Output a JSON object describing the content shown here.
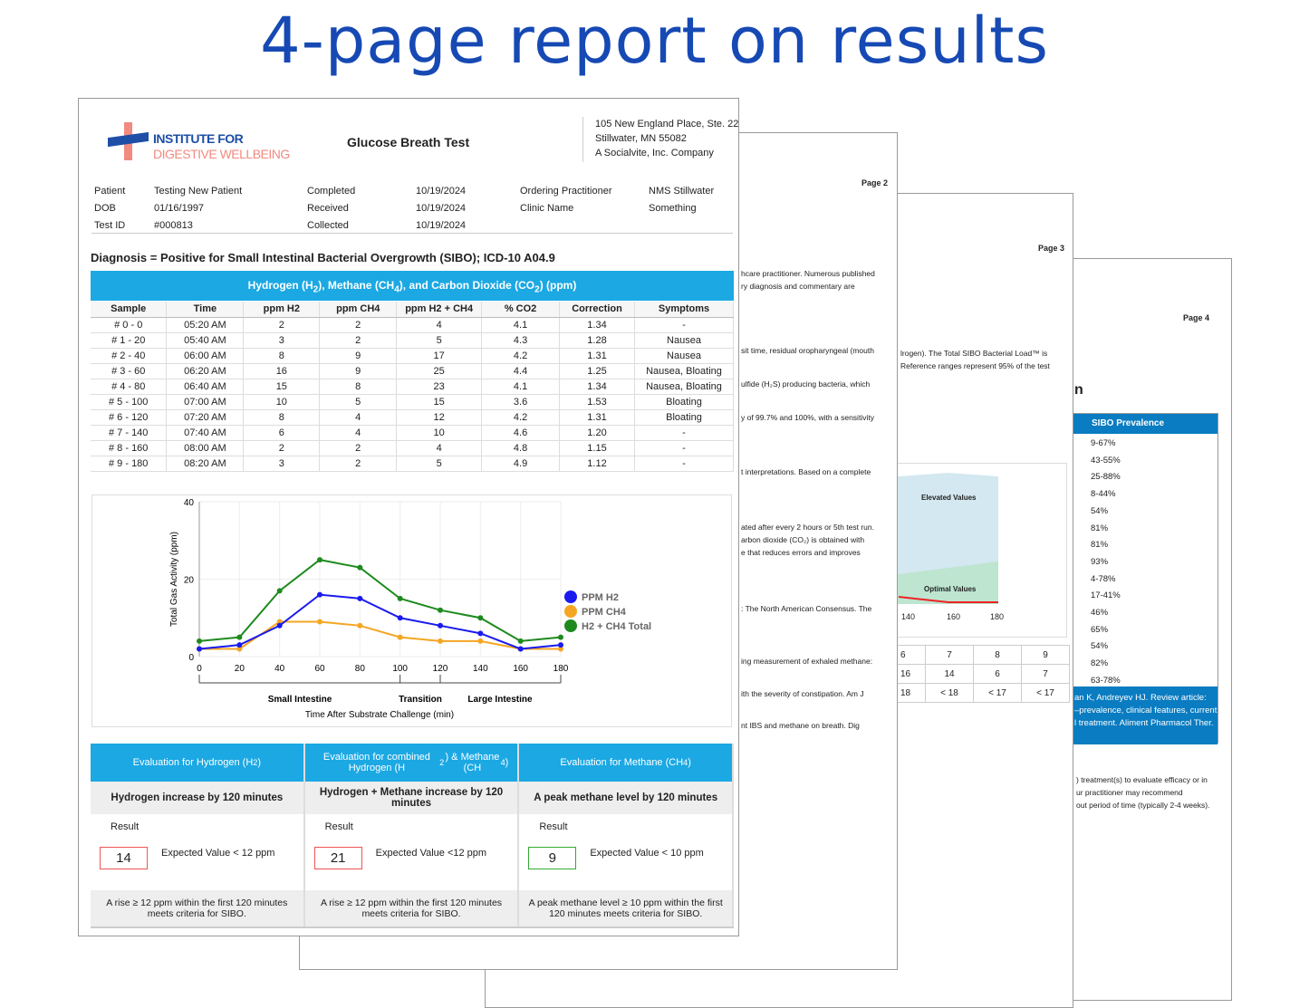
{
  "heading": "4-page report on results",
  "page1": {
    "logo": {
      "line1": "INSTITUTE FOR",
      "line2": "DIGESTIVE WELLBEING"
    },
    "title": "Glucose Breath Test",
    "address": [
      "105 New England Place, Ste. 220",
      "Stillwater, MN 55082",
      "A Socialvite, Inc. Company"
    ],
    "info": [
      {
        "l1": "Patient",
        "v1": "Testing New Patient",
        "l2": "Completed",
        "v2": "10/19/2024",
        "l3": "Ordering Practitioner",
        "v3": "NMS Stillwater"
      },
      {
        "l1": "DOB",
        "v1": "01/16/1997",
        "l2": "Received",
        "v2": "10/19/2024",
        "l3": "Clinic Name",
        "v3": "Something"
      },
      {
        "l1": "Test ID",
        "v1": "#000813",
        "l2": "Collected",
        "v2": "10/19/2024",
        "l3": "",
        "v3": ""
      }
    ],
    "diagnosis": "Diagnosis = Positive for Small Intestinal Bacterial Overgrowth (SIBO); ICD-10 A04.9",
    "table_title": "Hydrogen (H2), Methane (CH4), and Carbon Dioxide (CO2) (ppm)",
    "columns": [
      "Sample",
      "Time",
      "ppm H2",
      "ppm CH4",
      "ppm H2 + CH4",
      "% CO2",
      "Correction",
      "Symptoms"
    ],
    "rows": [
      [
        "# 0 - 0",
        "05:20 AM",
        "2",
        "2",
        "4",
        "4.1",
        "1.34",
        "-"
      ],
      [
        "# 1 - 20",
        "05:40 AM",
        "3",
        "2",
        "5",
        "4.3",
        "1.28",
        "Nausea"
      ],
      [
        "# 2 - 40",
        "06:00 AM",
        "8",
        "9",
        "17",
        "4.2",
        "1.31",
        "Nausea"
      ],
      [
        "# 3 - 60",
        "06:20 AM",
        "16",
        "9",
        "25",
        "4.4",
        "1.25",
        "Nausea, Bloating"
      ],
      [
        "# 4 - 80",
        "06:40 AM",
        "15",
        "8",
        "23",
        "4.1",
        "1.34",
        "Nausea, Bloating"
      ],
      [
        "# 5 - 100",
        "07:00 AM",
        "10",
        "5",
        "15",
        "3.6",
        "1.53",
        "Bloating"
      ],
      [
        "# 6 - 120",
        "07:20 AM",
        "8",
        "4",
        "12",
        "4.2",
        "1.31",
        "Bloating"
      ],
      [
        "# 7 - 140",
        "07:40 AM",
        "6",
        "4",
        "10",
        "4.6",
        "1.20",
        "-"
      ],
      [
        "# 8 - 160",
        "08:00 AM",
        "2",
        "2",
        "4",
        "4.8",
        "1.15",
        "-"
      ],
      [
        "# 9 - 180",
        "08:20 AM",
        "3",
        "2",
        "5",
        "4.9",
        "1.12",
        "-"
      ]
    ],
    "evaluations": [
      {
        "header": "Evaluation for Hydrogen (H2)",
        "criterion": "Hydrogen increase by 120 minutes",
        "result_label": "Result",
        "result": "14",
        "status": "high",
        "expected": "Expected Value < 12 ppm",
        "note": "A rise ≥ 12 ppm within the first 120 minutes meets criteria for SIBO."
      },
      {
        "header": "Evaluation for combined Hydrogen (H2) & Methane (CH4)",
        "criterion": "Hydrogen + Methane increase by 120 minutes",
        "result_label": "Result",
        "result": "21",
        "status": "high",
        "expected": "Expected Value <12 ppm",
        "note": "A rise ≥ 12 ppm within the first 120 minutes meets criteria for SIBO."
      },
      {
        "header": "Evaluation for Methane (CH4)",
        "criterion": "A peak methane level by 120 minutes",
        "result_label": "Result",
        "result": "9",
        "status": "normal",
        "expected": "Expected Value < 10 ppm",
        "note": "A peak methane level ≥ 10 ppm within the first 120 minutes meets criteria for SIBO."
      }
    ]
  },
  "chart_data": {
    "type": "line",
    "x": [
      0,
      20,
      40,
      60,
      80,
      100,
      120,
      140,
      160,
      180
    ],
    "series": [
      {
        "name": "PPM H2",
        "color": "#1a1aee",
        "values": [
          2,
          3,
          8,
          16,
          15,
          10,
          8,
          6,
          2,
          3
        ]
      },
      {
        "name": "PPM CH4",
        "color": "#f5a623",
        "values": [
          2,
          2,
          9,
          9,
          8,
          5,
          4,
          4,
          2,
          2
        ]
      },
      {
        "name": "H2 + CH4 Total",
        "color": "#1e8a1e",
        "values": [
          4,
          5,
          17,
          25,
          23,
          15,
          12,
          10,
          4,
          5
        ]
      }
    ],
    "ylabel": "Total Gas Activity (ppm)",
    "xlabel": "Time After Substrate Challenge (min)",
    "ylim": [
      0,
      40
    ],
    "yticks": [
      0,
      20,
      40
    ],
    "xlim": [
      0,
      180
    ],
    "regions": [
      {
        "label": "Small Intestine",
        "from": 0,
        "to": 100
      },
      {
        "label": "Transition",
        "from": 100,
        "to": 120
      },
      {
        "label": "Large Intestine",
        "from": 120,
        "to": 180
      }
    ],
    "legend": "right"
  },
  "page2": {
    "page": "Page 2",
    "lines": [
      "hcare practitioner. Numerous published",
      "ry diagnosis and commentary are",
      "sit time, residual oropharyngeal (mouth",
      "ulfide (H₂S) producing bacteria, which",
      "y of 99.7% and 100%, with a sensitivity",
      "t interpretations. Based on a complete",
      "ated after every 2 hours or 5th test run.",
      "arbon dioxide  (CO₂) is obtained with",
      "e that reduces errors and improves",
      ": The North American Consensus. The",
      "ing measurement of exhaled methane:",
      "ith the severity of constipation. Am J",
      "nt IBS and methane on breath. Dig"
    ]
  },
  "page3": {
    "page": "Page 3",
    "lines": [
      "lrogen). The Total SIBO Bacterial Load™ is",
      "Reference ranges represent 95% of the test"
    ],
    "elevated": "Elevated Values",
    "optimal": "Optimal Values",
    "xticks": [
      "140",
      "160",
      "180"
    ],
    "table": [
      [
        "6",
        "7",
        "8",
        "9"
      ],
      [
        "16",
        "14",
        "6",
        "7"
      ],
      [
        "18",
        "< 18",
        "< 17",
        "< 17"
      ]
    ]
  },
  "page4": {
    "page": "Page 4",
    "heading": "n",
    "prev_header": "SIBO Prevalence",
    "prevalence": [
      "9-67%",
      "43-55%",
      "25-88%",
      "8-44%",
      "54%",
      "81%",
      "81%",
      "93%",
      "4-78%",
      "17-41%",
      "46%",
      "65%",
      "54%",
      "82%",
      "63-78%"
    ],
    "citation": [
      "an K, Andreyev HJ. Review article:",
      "–prevalence, clinical features, current",
      "l treatment. Aliment Pharmacol Ther."
    ],
    "lines": [
      ") treatment(s) to evaluate efficacy or in",
      "ur practitioner may recommend",
      "out period of time (typically 2-4 weeks)."
    ]
  }
}
